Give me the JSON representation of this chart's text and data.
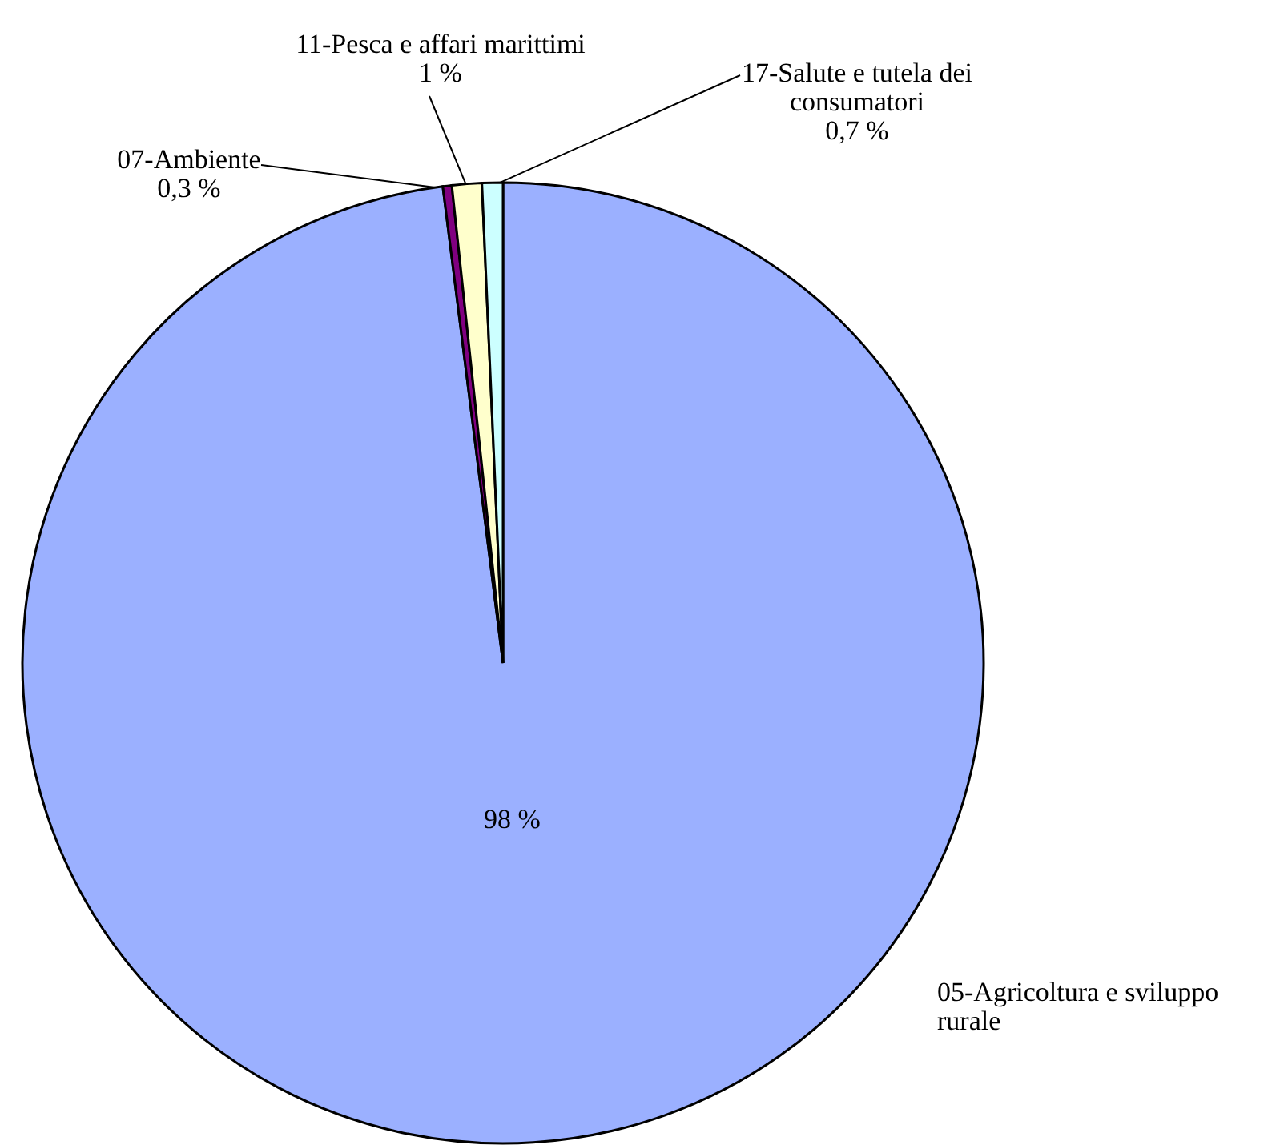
{
  "chart_data": {
    "type": "pie",
    "categories": [
      "05-Agricoltura e sviluppo rurale",
      "07-Ambiente",
      "11-Pesca e affari marittimi",
      "17-Salute e tutela dei consumatori"
    ],
    "values": [
      98,
      0.3,
      1,
      0.7
    ],
    "colors": [
      "#9bb0ff",
      "#800080",
      "#ffffcc",
      "#ccffff"
    ],
    "value_labels": [
      "98 %",
      "0,3 %",
      "1 %",
      "0,7 %"
    ]
  }
}
